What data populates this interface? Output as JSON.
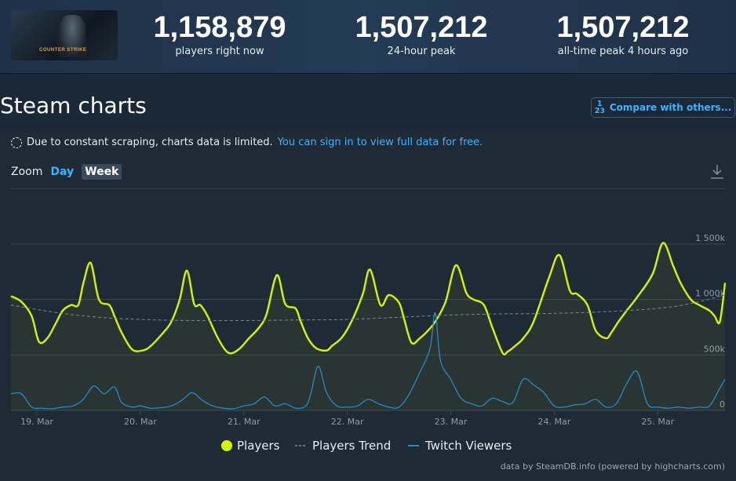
{
  "stats": [
    {
      "value": "1,158,879",
      "label": "players right now"
    },
    {
      "value": "1,507,212",
      "label": "24-hour peak"
    },
    {
      "value": "1,507,212",
      "label": "all-time peak 4 hours ago"
    }
  ],
  "game_logo_text": "COUNTER STRIKE",
  "heading": "Steam charts",
  "compare_button": "Compare with others...",
  "notice": {
    "text": "Due to constant scraping, charts data is limited.",
    "link": "You can sign in to view full data for free."
  },
  "zoom": {
    "label": "Zoom",
    "day": "Day",
    "week": "Week"
  },
  "icons": [
    "loading-circle-icon",
    "fraction-icon",
    "download-icon"
  ],
  "colors": {
    "players": "#d4f500",
    "trend": "#7a8a96",
    "twitch": "#2b87c6"
  },
  "credit": "data by SteamDB.info (powered by highcharts.com)",
  "chart_data": {
    "type": "line",
    "x_range": [
      18.75,
      25.65
    ],
    "ylim": [
      0,
      1500000
    ],
    "yticks": [
      0,
      500000,
      1000000,
      1500000
    ],
    "ytick_labels": [
      "0",
      "500k",
      "1 000k",
      "1 500k"
    ],
    "xticks": [
      19,
      20,
      21,
      22,
      23,
      24,
      25
    ],
    "xtick_labels": [
      "19. Mar",
      "20. Mar",
      "21. Mar",
      "22. Mar",
      "23. Mar",
      "24. Mar",
      "25. Mar"
    ],
    "grid": true,
    "legend_position": "bottom-center",
    "series": [
      {
        "name": "Players",
        "x": [
          18.75,
          18.85,
          18.95,
          19.02,
          19.1,
          19.18,
          19.25,
          19.33,
          19.4,
          19.45,
          19.52,
          19.6,
          19.7,
          19.75,
          19.82,
          19.92,
          20.02,
          20.1,
          20.22,
          20.3,
          20.38,
          20.45,
          20.52,
          20.58,
          20.65,
          20.75,
          20.85,
          20.95,
          21.05,
          21.15,
          21.22,
          21.32,
          21.4,
          21.5,
          21.55,
          21.62,
          21.7,
          21.8,
          21.85,
          21.95,
          22.05,
          22.15,
          22.22,
          22.32,
          22.4,
          22.5,
          22.55,
          22.62,
          22.7,
          22.78,
          22.85,
          22.95,
          23.05,
          23.15,
          23.22,
          23.32,
          23.4,
          23.5,
          23.55,
          23.62,
          23.7,
          23.8,
          23.95,
          24.05,
          24.15,
          24.22,
          24.32,
          24.4,
          24.5,
          24.55,
          24.62,
          24.7,
          24.8,
          24.95,
          25.05,
          25.15,
          25.22,
          25.32,
          25.4,
          25.5,
          25.55,
          25.6,
          25.65
        ],
        "y": [
          1030000,
          980000,
          850000,
          620000,
          650000,
          780000,
          900000,
          950000,
          950000,
          1150000,
          1330000,
          1000000,
          950000,
          850000,
          700000,
          550000,
          540000,
          580000,
          700000,
          800000,
          1000000,
          1260000,
          960000,
          950000,
          850000,
          650000,
          520000,
          550000,
          650000,
          750000,
          870000,
          1220000,
          960000,
          920000,
          800000,
          650000,
          560000,
          540000,
          580000,
          660000,
          820000,
          1050000,
          1270000,
          950000,
          1040000,
          970000,
          820000,
          610000,
          650000,
          720000,
          800000,
          980000,
          1310000,
          1060000,
          1000000,
          950000,
          750000,
          520000,
          530000,
          580000,
          650000,
          800000,
          1200000,
          1400000,
          1080000,
          1050000,
          950000,
          720000,
          650000,
          700000,
          800000,
          900000,
          1020000,
          1230000,
          1510000,
          1300000,
          1150000,
          1000000,
          950000,
          900000,
          850000,
          800000,
          1150000
        ]
      },
      {
        "name": "Players Trend",
        "x": [
          18.75,
          19.2,
          19.6,
          20.0,
          20.5,
          21.0,
          21.5,
          22.0,
          22.5,
          23.0,
          23.5,
          24.0,
          24.5,
          25.0,
          25.3,
          25.65
        ],
        "y": [
          950000,
          880000,
          840000,
          820000,
          810000,
          810000,
          815000,
          820000,
          840000,
          860000,
          870000,
          875000,
          890000,
          920000,
          960000,
          1040000
        ]
      },
      {
        "name": "Twitch Viewers",
        "x": [
          18.75,
          18.85,
          18.95,
          19.05,
          19.15,
          19.25,
          19.35,
          19.45,
          19.55,
          19.65,
          19.75,
          19.82,
          19.92,
          20.0,
          20.1,
          20.2,
          20.3,
          20.4,
          20.5,
          20.6,
          20.7,
          20.8,
          20.9,
          21.0,
          21.1,
          21.2,
          21.3,
          21.4,
          21.5,
          21.6,
          21.65,
          21.72,
          21.8,
          21.9,
          22.0,
          22.1,
          22.2,
          22.3,
          22.4,
          22.5,
          22.6,
          22.7,
          22.8,
          22.85,
          22.9,
          23.0,
          23.1,
          23.2,
          23.3,
          23.4,
          23.5,
          23.6,
          23.7,
          23.8,
          23.9,
          24.0,
          24.1,
          24.2,
          24.3,
          24.4,
          24.5,
          24.6,
          24.7,
          24.8,
          24.9,
          25.0,
          25.1,
          25.2,
          25.3,
          25.4,
          25.5,
          25.6,
          25.65
        ],
        "y": [
          150000,
          150000,
          30000,
          20000,
          15000,
          30000,
          40000,
          100000,
          220000,
          150000,
          210000,
          70000,
          30000,
          40000,
          20000,
          25000,
          40000,
          90000,
          160000,
          90000,
          40000,
          20000,
          15000,
          40000,
          60000,
          120000,
          40000,
          60000,
          20000,
          40000,
          160000,
          400000,
          160000,
          40000,
          30000,
          40000,
          100000,
          60000,
          30000,
          30000,
          150000,
          340000,
          560000,
          880000,
          450000,
          280000,
          110000,
          60000,
          40000,
          110000,
          80000,
          70000,
          280000,
          230000,
          160000,
          40000,
          30000,
          50000,
          60000,
          100000,
          30000,
          60000,
          240000,
          350000,
          60000,
          30000,
          20000,
          30000,
          20000,
          30000,
          40000,
          200000,
          280000
        ]
      }
    ]
  }
}
